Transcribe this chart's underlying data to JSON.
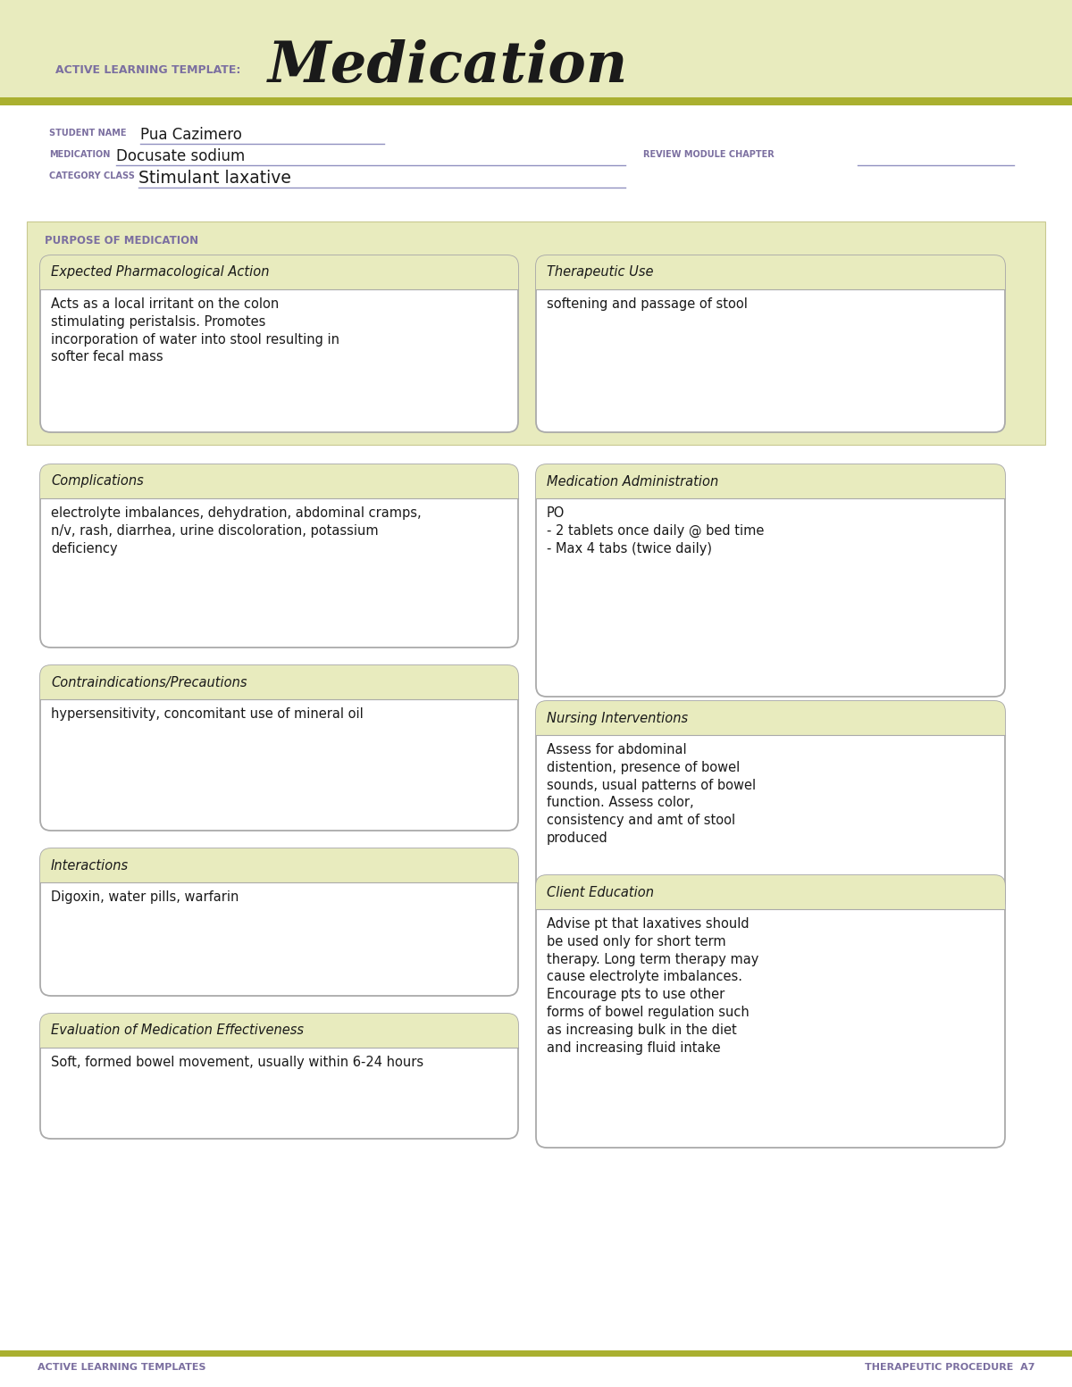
{
  "white": "#ffffff",
  "olive_light": "#e8ebbe",
  "olive_border": "#b8b860",
  "gray_border": "#aaaaaa",
  "purple_label": "#7b6fa0",
  "dark_text": "#1a1a1a",
  "green_stripe": "#aab030",
  "title_label": "ACTIVE LEARNING TEMPLATE:",
  "title_main": "Medication",
  "student_name_label": "STUDENT NAME",
  "student_name": "Pua Cazimero",
  "medication_label": "MEDICATION",
  "medication": "Docusate sodium",
  "review_label": "REVIEW MODULE CHAPTER",
  "category_label": "CATEGORY CLASS",
  "category": "Stimulant laxative",
  "purpose_label": "PURPOSE OF MEDICATION",
  "box1_title": "Expected Pharmacological Action",
  "box1_content": "Acts as a local irritant on the colon\nstimulating peristalsis. Promotes\nincorporation of water into stool resulting in\nsofter fecal mass",
  "box2_title": "Therapeutic Use",
  "box2_content": "softening and passage of stool",
  "box3_title": "Complications",
  "box3_content": "electrolyte imbalances, dehydration, abdominal cramps,\nn/v, rash, diarrhea, urine discoloration, potassium\ndeficiency",
  "box4_title": "Medication Administration",
  "box4_content": "PO\n- 2 tablets once daily @ bed time\n- Max 4 tabs (twice daily)",
  "box5_title": "Contraindications/Precautions",
  "box5_content": "hypersensitivity, concomitant use of mineral oil",
  "box6_title": "Nursing Interventions",
  "box6_content": "Assess for abdominal\ndistention, presence of bowel\nsounds, usual patterns of bowel\nfunction. Assess color,\nconsistency and amt of stool\nproduced",
  "box7_title": "Interactions",
  "box7_content": "Digoxin, water pills, warfarin",
  "box8_title": "Client Education",
  "box8_content": "Advise pt that laxatives should\nbe used only for short term\ntherapy. Long term therapy may\ncause electrolyte imbalances.\nEncourage pts to use other\nforms of bowel regulation such\nas increasing bulk in the diet\nand increasing fluid intake",
  "box9_title": "Evaluation of Medication Effectiveness",
  "box9_content": "Soft, formed bowel movement, usually within 6-24 hours",
  "footer_left": "ACTIVE LEARNING TEMPLATES",
  "footer_right": "THERAPEUTIC PROCEDURE  A7",
  "underline_color": "#9090c0",
  "line_color": "#9090c0"
}
